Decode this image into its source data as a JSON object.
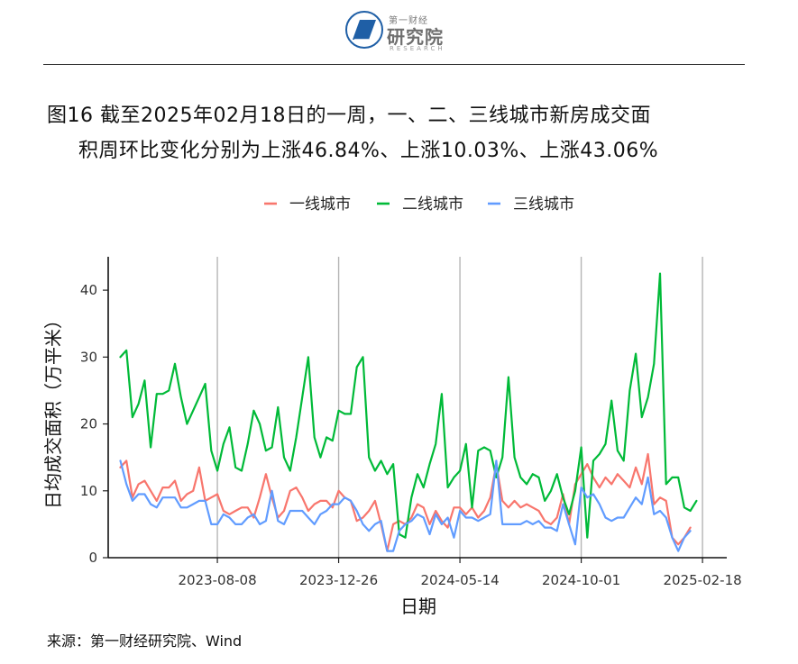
{
  "header": {
    "logo_small": "第一财经",
    "logo_big": "研究院",
    "logo_en": "RESEARCH"
  },
  "figure": {
    "title_line1": "图16 截至2025年02月18日的一周，一、二、三线城市新房成交面",
    "title_line2": "积周环比变化分别为上涨46.84%、上涨10.03%、上涨43.06%",
    "source": "来源：第一财经研究院、Wind"
  },
  "chart_data": {
    "type": "line",
    "title": "",
    "xlabel": "日期",
    "ylabel": "日均成交面积（万平米）",
    "ylim": [
      0,
      45
    ],
    "yticks": [
      0,
      10,
      20,
      30,
      40
    ],
    "xlim_weeks": [
      -2,
      82
    ],
    "xticks": [
      {
        "label": "2023-08-08",
        "week": 16
      },
      {
        "label": "2023-12-26",
        "week": 36
      },
      {
        "label": "2024-05-14",
        "week": 56
      },
      {
        "label": "2024-10-01",
        "week": 76
      },
      {
        "label": "2025-02-18",
        "week": 96
      }
    ],
    "grid": "vertical major lines",
    "legend_position": "top",
    "x_start": "2023-03-28",
    "x_end": "2025-02-18",
    "x_step": "weekly",
    "series": [
      {
        "name": "一线城市",
        "color": "#F8766D",
        "values": [
          13.5,
          14.5,
          9,
          11,
          11.5,
          10,
          8.5,
          10.5,
          10.5,
          11.5,
          8.5,
          9.5,
          10,
          13.5,
          8.5,
          9,
          9.5,
          7,
          6.5,
          7,
          7.5,
          7.5,
          6,
          9,
          12.5,
          9,
          6,
          7,
          10,
          10.5,
          9,
          7,
          8,
          8.5,
          8.5,
          7.5,
          10,
          9,
          8.5,
          5.5,
          6,
          7,
          8.5,
          5,
          1,
          5,
          5.5,
          5,
          6,
          8,
          7.5,
          5,
          7,
          5.5,
          4.5,
          7.5,
          7.5,
          6.5,
          7.5,
          6,
          7,
          9,
          14,
          8.5,
          7.5,
          8.5,
          7.5,
          8,
          7.5,
          7,
          5.5,
          5,
          6,
          9.5,
          5,
          11,
          12.5,
          14,
          12,
          10.5,
          12,
          11,
          12.5,
          11.5,
          10.5,
          13.5,
          11,
          15.5,
          8,
          9,
          8.5,
          3,
          2,
          3,
          4.5
        ]
      },
      {
        "name": "二线城市",
        "color": "#00BA38",
        "values": [
          30,
          31,
          21,
          23,
          26.5,
          16.5,
          24.5,
          24.5,
          25,
          29,
          24,
          20,
          22,
          24,
          26,
          16,
          13,
          17,
          19.5,
          13.5,
          13,
          17,
          22,
          20,
          16,
          16.5,
          22.5,
          15,
          13,
          18,
          24,
          30,
          18,
          15,
          18,
          17.5,
          22,
          21.5,
          21.5,
          28.5,
          30,
          15,
          13,
          14.5,
          12.5,
          14,
          3.5,
          3,
          9,
          12.5,
          10.5,
          14,
          17,
          24.5,
          10.5,
          12,
          13,
          17,
          7.5,
          16,
          16.5,
          16,
          12,
          15,
          27,
          15,
          12,
          11,
          12.5,
          12,
          8.5,
          10,
          12.5,
          9,
          6.5,
          10,
          16.5,
          3,
          14.5,
          15.5,
          17,
          23.5,
          16,
          14.5,
          25,
          30.5,
          21,
          24,
          29,
          42.5,
          11,
          12,
          12,
          7.5,
          7,
          8.5
        ]
      },
      {
        "name": "三线城市",
        "color": "#619CFF",
        "values": [
          14.5,
          11,
          8.5,
          9.5,
          9.5,
          8,
          7.5,
          9,
          9,
          9,
          7.5,
          7.5,
          8,
          8.5,
          8.5,
          5,
          5,
          6.5,
          6,
          5,
          5,
          6,
          6.5,
          5,
          5.5,
          10,
          5.5,
          5,
          7,
          7,
          7,
          6,
          5,
          6.5,
          7,
          8,
          8,
          9,
          8.5,
          7,
          5,
          4,
          5,
          5.5,
          1,
          1,
          4,
          5,
          5.5,
          6.5,
          6,
          3.5,
          6.5,
          5,
          6,
          3,
          7,
          6,
          6,
          5.5,
          6,
          6.5,
          14.5,
          5,
          5,
          5,
          5,
          5.5,
          5,
          5.5,
          4.5,
          4.5,
          4,
          8,
          5,
          2,
          10.5,
          9,
          9.5,
          8,
          6,
          5.5,
          6,
          6,
          7.5,
          9,
          8,
          12,
          6.5,
          7,
          6,
          3,
          1,
          3,
          4
        ]
      }
    ]
  }
}
